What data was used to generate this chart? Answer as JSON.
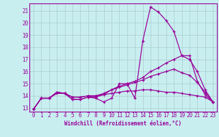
{
  "xlabel": "Windchill (Refroidissement éolien,°C)",
  "background_color": "#c8eef0",
  "line_color": "#990099",
  "grid_color": "#aacccc",
  "xlim": [
    -0.5,
    23.5
  ],
  "ylim": [
    12.7,
    21.6
  ],
  "yticks": [
    13,
    14,
    15,
    16,
    17,
    18,
    19,
    20,
    21
  ],
  "xticks": [
    0,
    1,
    2,
    3,
    4,
    5,
    6,
    7,
    8,
    9,
    10,
    11,
    12,
    13,
    14,
    15,
    16,
    17,
    18,
    19,
    20,
    21,
    22,
    23
  ],
  "series": [
    {
      "x": [
        0,
        1,
        2,
        3,
        4,
        5,
        6,
        7,
        8,
        9,
        10,
        11,
        12,
        13,
        14,
        15,
        16,
        17,
        18,
        19,
        20,
        21,
        22,
        23
      ],
      "y": [
        12.9,
        13.8,
        13.8,
        14.3,
        14.2,
        13.7,
        13.7,
        13.9,
        13.8,
        13.5,
        13.8,
        15.0,
        15.0,
        13.8,
        18.5,
        21.3,
        20.9,
        20.2,
        19.3,
        17.3,
        17.3,
        15.2,
        14.1,
        13.5
      ]
    },
    {
      "x": [
        0,
        1,
        2,
        3,
        4,
        5,
        6,
        7,
        8,
        9,
        10,
        11,
        12,
        13,
        14,
        15,
        16,
        17,
        18,
        19,
        20,
        21,
        22,
        23
      ],
      "y": [
        12.9,
        13.8,
        13.8,
        14.3,
        14.2,
        13.7,
        13.7,
        13.9,
        13.9,
        14.1,
        14.5,
        14.8,
        15.0,
        15.2,
        15.5,
        16.0,
        16.3,
        16.7,
        17.0,
        17.3,
        17.0,
        16.0,
        14.5,
        13.5
      ]
    },
    {
      "x": [
        0,
        1,
        2,
        3,
        4,
        5,
        6,
        7,
        8,
        9,
        10,
        11,
        12,
        13,
        14,
        15,
        16,
        17,
        18,
        19,
        20,
        21,
        22,
        23
      ],
      "y": [
        12.9,
        13.8,
        13.8,
        14.3,
        14.2,
        13.9,
        13.9,
        14.0,
        14.0,
        14.2,
        14.5,
        14.7,
        14.9,
        15.1,
        15.3,
        15.6,
        15.8,
        16.0,
        16.2,
        15.9,
        15.7,
        15.1,
        14.3,
        13.5
      ]
    },
    {
      "x": [
        0,
        1,
        2,
        3,
        4,
        5,
        6,
        7,
        8,
        9,
        10,
        11,
        12,
        13,
        14,
        15,
        16,
        17,
        18,
        19,
        20,
        21,
        22,
        23
      ],
      "y": [
        12.9,
        13.8,
        13.8,
        14.2,
        14.2,
        13.9,
        13.9,
        14.0,
        14.0,
        14.1,
        14.2,
        14.3,
        14.4,
        14.4,
        14.5,
        14.5,
        14.4,
        14.3,
        14.3,
        14.2,
        14.1,
        14.0,
        13.9,
        13.5
      ]
    }
  ],
  "xlabel_fontsize": 5.5,
  "tick_fontsize": 5.5,
  "linewidth": 0.9,
  "markersize": 3.5
}
